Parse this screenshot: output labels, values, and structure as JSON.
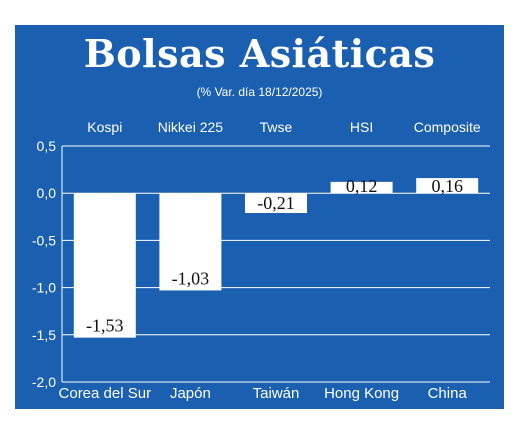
{
  "chart_data": {
    "type": "bar",
    "title": "Bolsas Asiáticas",
    "subtitle": "(% Var. día  18/12/2025)",
    "categories": [
      "Kospi",
      "Nikkei 225",
      "Twse",
      "HSI",
      "Composite"
    ],
    "countries": [
      "Corea del Sur",
      "Japón",
      "Taiwán",
      "Hong Kong",
      "China"
    ],
    "values": [
      -1.53,
      -1.03,
      -0.21,
      0.12,
      0.16
    ],
    "value_labels": [
      "-1,53",
      "-1,03",
      "-0,21",
      "0,12",
      "0,16"
    ],
    "ylim": [
      -2.0,
      0.5
    ],
    "yticks": [
      0.5,
      0.0,
      -0.5,
      -1.0,
      -1.5,
      -2.0
    ],
    "ytick_labels": [
      "0,5",
      "0,0",
      "-0,5",
      "-1,0",
      "-1,5",
      "-2,0"
    ],
    "grid": true,
    "colors": {
      "background": "#1a5fb0",
      "bar": "#ffffff",
      "grid": "#ffffff"
    }
  }
}
